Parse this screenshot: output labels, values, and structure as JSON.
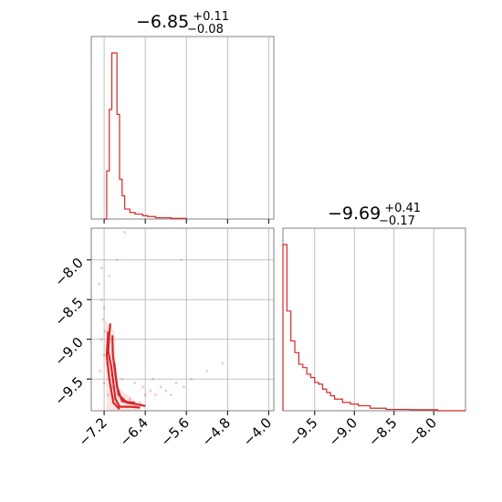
{
  "colors": {
    "series": "#d62728",
    "frame": "#808080",
    "grid": "#b0b0b0"
  },
  "chart_data": [
    {
      "type": "histogram",
      "panel": "top-left",
      "title_value": "−6.85",
      "title_plus": "+0.11",
      "title_minus": "−0.08",
      "xlim": [
        -7.45,
        -3.9
      ],
      "xticks": [
        -7.2,
        -6.4,
        -5.6,
        -4.8,
        -4.0
      ],
      "grid": true,
      "bins": [
        {
          "x0": -7.2,
          "x1": -7.15,
          "h": 0.0
        },
        {
          "x0": -7.15,
          "x1": -7.1,
          "h": 0.29
        },
        {
          "x0": -7.1,
          "x1": -7.05,
          "h": 0.66
        },
        {
          "x0": -7.05,
          "x1": -6.95,
          "h": 1.0
        },
        {
          "x0": -6.95,
          "x1": -6.9,
          "h": 0.63
        },
        {
          "x0": -6.9,
          "x1": -6.85,
          "h": 0.24
        },
        {
          "x0": -6.85,
          "x1": -6.8,
          "h": 0.14
        },
        {
          "x0": -6.8,
          "x1": -6.7,
          "h": 0.06
        },
        {
          "x0": -6.7,
          "x1": -6.6,
          "h": 0.04
        },
        {
          "x0": -6.6,
          "x1": -6.45,
          "h": 0.03
        },
        {
          "x0": -6.45,
          "x1": -6.35,
          "h": 0.02
        },
        {
          "x0": -6.35,
          "x1": -6.2,
          "h": 0.015
        },
        {
          "x0": -6.2,
          "x1": -5.9,
          "h": 0.008
        },
        {
          "x0": -5.9,
          "x1": -5.6,
          "h": 0.004
        }
      ]
    },
    {
      "type": "scatter",
      "panel": "bottom-left",
      "xlim": [
        -7.45,
        -3.9
      ],
      "ylim": [
        -9.9,
        -7.6
      ],
      "xticks": [
        -7.2,
        -6.4,
        -5.6,
        -4.8,
        -4.0
      ],
      "yticks": [
        -8.0,
        -8.5,
        -9.0,
        -9.5
      ],
      "grid": true,
      "points": [
        [
          -7.25,
          -8.5
        ],
        [
          -7.2,
          -8.6
        ],
        [
          -7.22,
          -8.75
        ],
        [
          -7.18,
          -8.9
        ],
        [
          -7.25,
          -9.0
        ],
        [
          -7.2,
          -9.2
        ],
        [
          -7.15,
          -9.3
        ],
        [
          -7.28,
          -9.4
        ],
        [
          -7.2,
          -9.55
        ],
        [
          -7.12,
          -9.7
        ],
        [
          -7.1,
          -8.2
        ],
        [
          -7.3,
          -8.3
        ],
        [
          -7.05,
          -9.6
        ],
        [
          -7.0,
          -9.75
        ],
        [
          -6.95,
          -9.8
        ],
        [
          -6.9,
          -9.7
        ],
        [
          -6.8,
          -9.8
        ],
        [
          -6.7,
          -9.75
        ],
        [
          -6.6,
          -9.85
        ],
        [
          -6.5,
          -9.8
        ],
        [
          -6.4,
          -9.7
        ],
        [
          -6.3,
          -9.65
        ],
        [
          -6.2,
          -9.7
        ],
        [
          -6.1,
          -9.6
        ],
        [
          -6.0,
          -9.65
        ],
        [
          -5.9,
          -9.7
        ],
        [
          -5.8,
          -9.55
        ],
        [
          -5.65,
          -9.6
        ],
        [
          -5.5,
          -9.5
        ],
        [
          -5.2,
          -9.4
        ],
        [
          -4.9,
          -9.3
        ],
        [
          -6.8,
          -7.65
        ],
        [
          -5.7,
          -8.0
        ],
        [
          -7.25,
          -8.1
        ],
        [
          -6.95,
          -8.0
        ],
        [
          -6.6,
          -9.55
        ],
        [
          -6.85,
          -9.5
        ],
        [
          -7.05,
          -9.45
        ],
        [
          -6.45,
          -9.6
        ],
        [
          -6.25,
          -9.5
        ]
      ],
      "contours": [
        [
          [
            -7.08,
            -8.8
          ],
          [
            -7.1,
            -8.95
          ],
          [
            -7.12,
            -9.15
          ],
          [
            -7.06,
            -9.35
          ],
          [
            -7.02,
            -9.55
          ],
          [
            -6.98,
            -9.75
          ],
          [
            -6.9,
            -9.85
          ],
          [
            -6.7,
            -9.85
          ],
          [
            -6.5,
            -9.86
          ]
        ],
        [
          [
            -7.04,
            -8.95
          ],
          [
            -7.03,
            -9.2
          ],
          [
            -6.98,
            -9.45
          ],
          [
            -6.92,
            -9.7
          ],
          [
            -6.75,
            -9.8
          ],
          [
            -6.55,
            -9.82
          ],
          [
            -6.4,
            -9.84
          ]
        ],
        [
          [
            -7.12,
            -8.9
          ],
          [
            -7.15,
            -9.2
          ],
          [
            -7.1,
            -9.5
          ],
          [
            -7.02,
            -9.8
          ],
          [
            -6.9,
            -9.88
          ]
        ],
        [
          [
            -7.0,
            -9.3
          ],
          [
            -6.95,
            -9.6
          ],
          [
            -6.85,
            -9.78
          ],
          [
            -6.6,
            -9.8
          ]
        ]
      ]
    },
    {
      "type": "histogram",
      "panel": "bottom-right",
      "title_value": "−9.69",
      "title_plus": "+0.41",
      "title_minus": "−0.17",
      "xlim": [
        -9.9,
        -7.6
      ],
      "xticks": [
        -9.5,
        -9.0,
        -8.5,
        -8.0
      ],
      "grid": true,
      "bins": [
        {
          "x0": -9.9,
          "x1": -9.85,
          "h": 1.0
        },
        {
          "x0": -9.85,
          "x1": -9.8,
          "h": 0.6
        },
        {
          "x0": -9.8,
          "x1": -9.75,
          "h": 0.42
        },
        {
          "x0": -9.75,
          "x1": -9.7,
          "h": 0.35
        },
        {
          "x0": -9.7,
          "x1": -9.65,
          "h": 0.28
        },
        {
          "x0": -9.65,
          "x1": -9.6,
          "h": 0.26
        },
        {
          "x0": -9.6,
          "x1": -9.55,
          "h": 0.22
        },
        {
          "x0": -9.55,
          "x1": -9.5,
          "h": 0.2
        },
        {
          "x0": -9.5,
          "x1": -9.45,
          "h": 0.17
        },
        {
          "x0": -9.45,
          "x1": -9.4,
          "h": 0.16
        },
        {
          "x0": -9.4,
          "x1": -9.35,
          "h": 0.13
        },
        {
          "x0": -9.35,
          "x1": -9.3,
          "h": 0.11
        },
        {
          "x0": -9.3,
          "x1": -9.25,
          "h": 0.09
        },
        {
          "x0": -9.25,
          "x1": -9.15,
          "h": 0.07
        },
        {
          "x0": -9.15,
          "x1": -9.05,
          "h": 0.05
        },
        {
          "x0": -9.05,
          "x1": -8.95,
          "h": 0.04
        },
        {
          "x0": -8.95,
          "x1": -8.8,
          "h": 0.03
        },
        {
          "x0": -8.8,
          "x1": -8.6,
          "h": 0.015
        },
        {
          "x0": -8.6,
          "x1": -8.3,
          "h": 0.008
        },
        {
          "x0": -8.3,
          "x1": -7.95,
          "h": 0.006
        },
        {
          "x0": -7.95,
          "x1": -7.6,
          "h": 0.0
        }
      ]
    }
  ]
}
